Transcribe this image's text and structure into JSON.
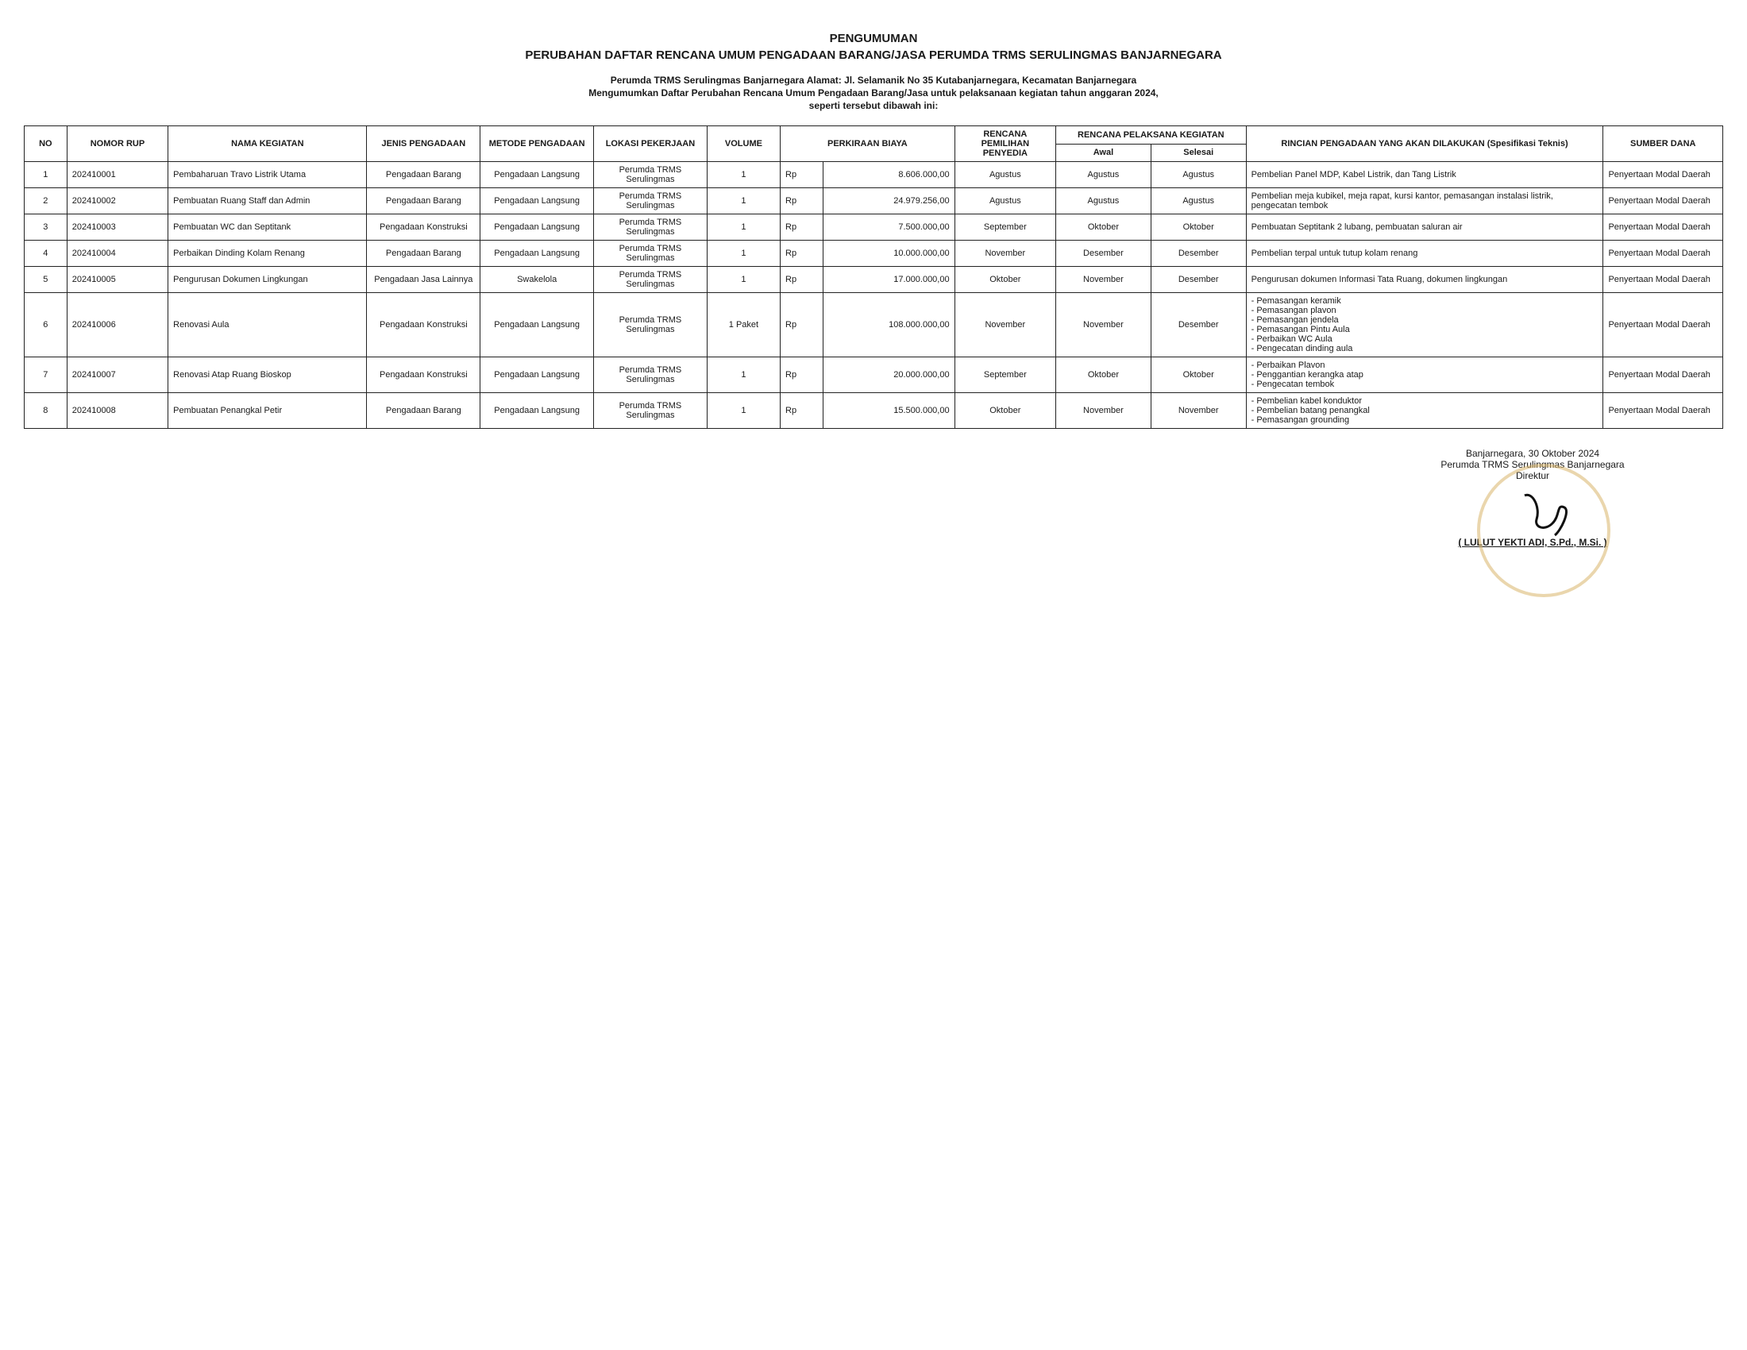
{
  "header": {
    "title1": "PENGUMUMAN",
    "title2": "PERUBAHAN DAFTAR RENCANA UMUM PENGADAAN BARANG/JASA PERUMDA TRMS SERULINGMAS BANJARNEGARA",
    "sub1": "Perumda TRMS Serulingmas Banjarnegara Alamat: Jl. Selamanik No 35 Kutabanjarnegara, Kecamatan Banjarnegara",
    "sub2": "Mengumumkan Daftar Perubahan Rencana Umum Pengadaan Barang/Jasa untuk pelaksanaan kegiatan tahun anggaran 2024,",
    "sub3": "seperti tersebut dibawah ini:"
  },
  "columns": {
    "no": "NO",
    "rup": "NOMOR RUP",
    "nama": "NAMA KEGIATAN",
    "jenis": "JENIS PENGADAAN",
    "metode": "METODE PENGADAAN",
    "lokasi": "LOKASI PEKERJAAN",
    "volume": "VOLUME",
    "biaya": "PERKIRAAN BIAYA",
    "pemilihan": "RENCANA PEMILIHAN PENYEDIA",
    "pelaksana": "RENCANA PELAKSANA KEGIATAN",
    "awal": "Awal",
    "selesai": "Selesai",
    "rincian": "RINCIAN PENGADAAN YANG AKAN DILAKUKAN (Spesifikasi Teknis)",
    "sumber": "SUMBER DANA"
  },
  "rows": [
    {
      "no": "1",
      "rup": "202410001",
      "nama": "Pembaharuan Travo Listrik Utama",
      "jenis": "Pengadaan Barang",
      "metode": "Pengadaan Langsung",
      "lokasi": "Perumda TRMS Serulingmas",
      "volume": "1",
      "rp": "Rp",
      "biaya": "8.606.000,00",
      "pemilihan": "Agustus",
      "awal": "Agustus",
      "selesai": "Agustus",
      "rincian": "Pembelian Panel MDP, Kabel Listrik, dan Tang Listrik",
      "sumber": "Penyertaan Modal Daerah"
    },
    {
      "no": "2",
      "rup": "202410002",
      "nama": "Pembuatan Ruang Staff dan Admin",
      "jenis": "Pengadaan Barang",
      "metode": "Pengadaan Langsung",
      "lokasi": "Perumda TRMS Serulingmas",
      "volume": "1",
      "rp": "Rp",
      "biaya": "24.979.256,00",
      "pemilihan": "Agustus",
      "awal": "Agustus",
      "selesai": "Agustus",
      "rincian": "Pembelian meja kubikel, meja rapat, kursi kantor, pemasangan instalasi listrik, pengecatan tembok",
      "sumber": "Penyertaan Modal Daerah"
    },
    {
      "no": "3",
      "rup": "202410003",
      "nama": "Pembuatan WC dan Septitank",
      "jenis": "Pengadaan Konstruksi",
      "metode": "Pengadaan Langsung",
      "lokasi": "Perumda TRMS Serulingmas",
      "volume": "1",
      "rp": "Rp",
      "biaya": "7.500.000,00",
      "pemilihan": "September",
      "awal": "Oktober",
      "selesai": "Oktober",
      "rincian": "Pembuatan Septitank 2 lubang, pembuatan saluran air",
      "sumber": "Penyertaan Modal Daerah"
    },
    {
      "no": "4",
      "rup": "202410004",
      "nama": "Perbaikan Dinding Kolam Renang",
      "jenis": "Pengadaan Barang",
      "metode": "Pengadaan Langsung",
      "lokasi": "Perumda TRMS Serulingmas",
      "volume": "1",
      "rp": "Rp",
      "biaya": "10.000.000,00",
      "pemilihan": "November",
      "awal": "Desember",
      "selesai": "Desember",
      "rincian": "Pembelian terpal untuk tutup kolam renang",
      "sumber": "Penyertaan Modal Daerah"
    },
    {
      "no": "5",
      "rup": "202410005",
      "nama": "Pengurusan Dokumen Lingkungan",
      "jenis": "Pengadaan Jasa Lainnya",
      "metode": "Swakelola",
      "lokasi": "Perumda TRMS Serulingmas",
      "volume": "1",
      "rp": "Rp",
      "biaya": "17.000.000,00",
      "pemilihan": "Oktober",
      "awal": "November",
      "selesai": "Desember",
      "rincian": "Pengurusan dokumen Informasi Tata Ruang, dokumen lingkungan",
      "sumber": "Penyertaan Modal Daerah"
    },
    {
      "no": "6",
      "rup": "202410006",
      "nama": "Renovasi Aula",
      "jenis": "Pengadaan Konstruksi",
      "metode": "Pengadaan Langsung",
      "lokasi": "Perumda TRMS Serulingmas",
      "volume": "1 Paket",
      "rp": "Rp",
      "biaya": "108.000.000,00",
      "pemilihan": "November",
      "awal": "November",
      "selesai": "Desember",
      "rincian_list": [
        "Pemasangan keramik",
        "Pemasangan plavon",
        "Pemasangan jendela",
        "Pemasangan Pintu Aula",
        "Perbaikan WC Aula",
        "Pengecatan dinding aula"
      ],
      "sumber": "Penyertaan Modal Daerah"
    },
    {
      "no": "7",
      "rup": "202410007",
      "nama": "Renovasi Atap Ruang Bioskop",
      "jenis": "Pengadaan Konstruksi",
      "metode": "Pengadaan Langsung",
      "lokasi": "Perumda TRMS Serulingmas",
      "volume": "1",
      "rp": "Rp",
      "biaya": "20.000.000,00",
      "pemilihan": "September",
      "awal": "Oktober",
      "selesai": "Oktober",
      "rincian_list": [
        "Perbaikan Plavon",
        "Penggantian kerangka atap",
        "Pengecatan tembok"
      ],
      "sumber": "Penyertaan Modal Daerah"
    },
    {
      "no": "8",
      "rup": "202410008",
      "nama": "Pembuatan Penangkal Petir",
      "jenis": "Pengadaan Barang",
      "metode": "Pengadaan Langsung",
      "lokasi": "Perumda TRMS Serulingmas",
      "volume": "1",
      "rp": "Rp",
      "biaya": "15.500.000,00",
      "pemilihan": "Oktober",
      "awal": "November",
      "selesai": "November",
      "rincian_list": [
        "Pembelian kabel konduktor",
        "Pembelian batang penangkal",
        "Pemasangan grounding"
      ],
      "sumber": "Penyertaan Modal Daerah"
    }
  ],
  "signature": {
    "place_date": "Banjarnegara, 30 Oktober 2024",
    "org": "Perumda TRMS Serulingmas Banjarnegara",
    "role": "Direktur",
    "name": "( LULUT YEKTI ADI, S.Pd., M.Si. )"
  },
  "style": {
    "border_color": "#222222",
    "text_color": "#1a1a1a",
    "background": "#ffffff",
    "stamp_color": "#d9b46a",
    "font_size_body": 11,
    "font_size_header": 15
  }
}
